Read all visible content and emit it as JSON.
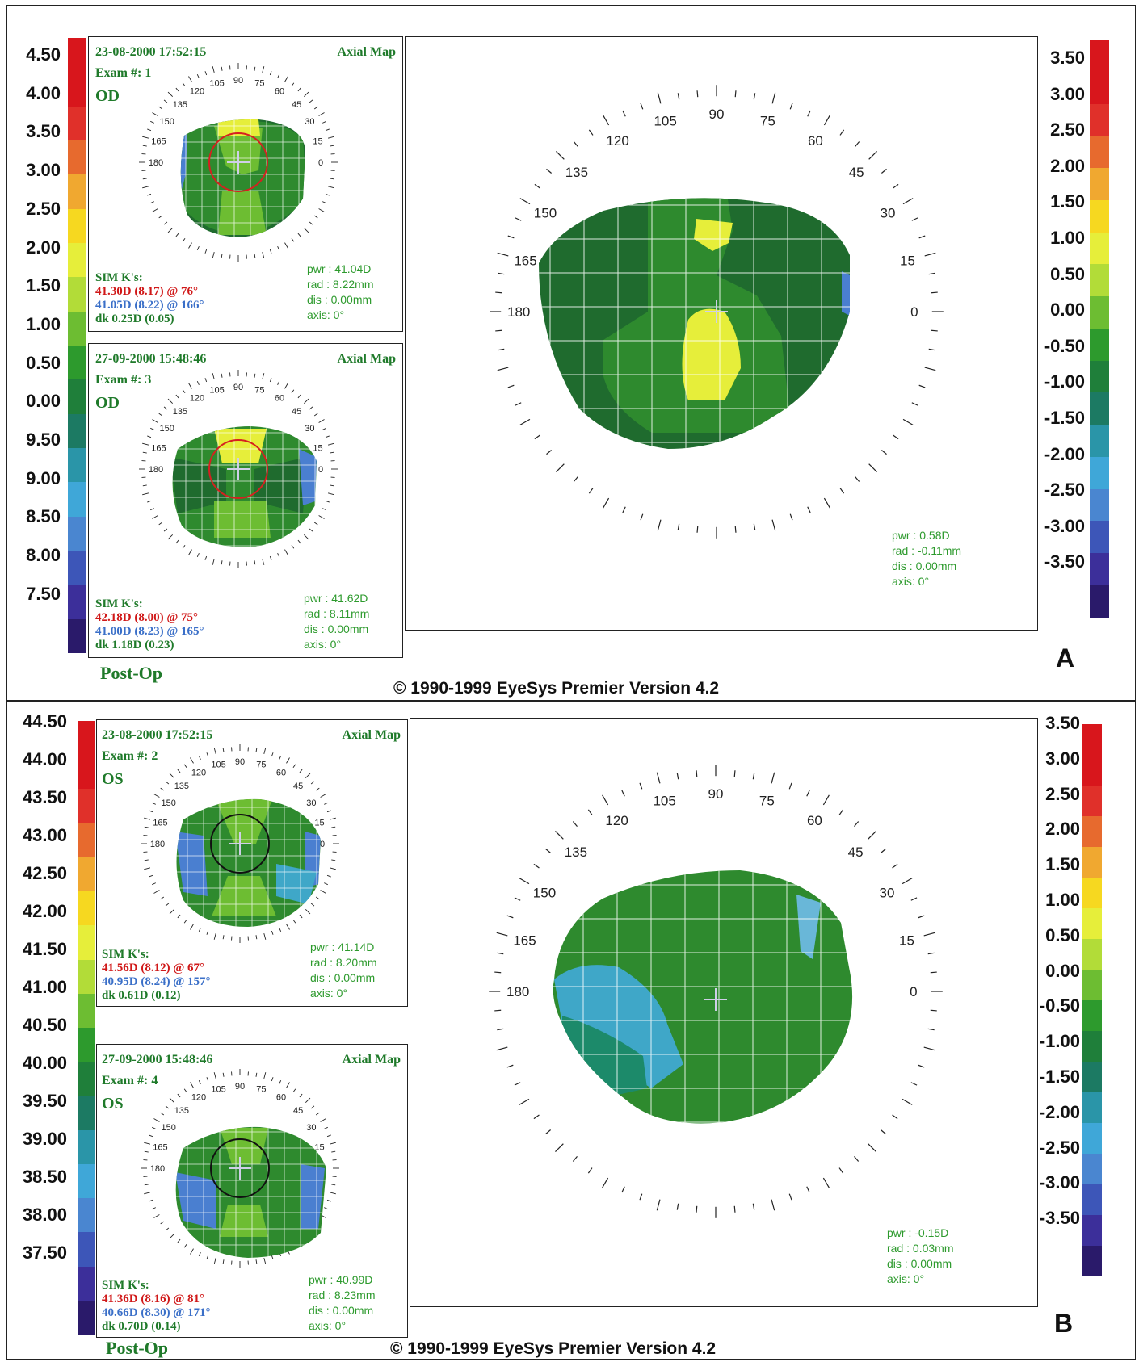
{
  "copyright": "© 1990-1999 EyeSys Premier Version 4.2",
  "post_op_label": "Post-Op",
  "panel_letters": [
    "A",
    "B"
  ],
  "map_type": "Axial Map",
  "sim_k_heading": "SIM K's:",
  "angles": [
    "90",
    "105",
    "120",
    "135",
    "150",
    "165",
    "180",
    "0",
    "15",
    "30",
    "45",
    "60",
    "75"
  ],
  "colors": {
    "scale": [
      "#d8161c",
      "#d8161c",
      "#e0302a",
      "#e76a2e",
      "#f0a830",
      "#f6d820",
      "#e6ee3a",
      "#b2dc38",
      "#6dbd32",
      "#2d9a2d",
      "#1f7f3a",
      "#1c7a63",
      "#2a95a8",
      "#3fa7d8",
      "#4a86d0",
      "#3d56b8",
      "#3c2f9a",
      "#2a1a6a"
    ],
    "grid": "#ffffff",
    "ring_red": "#d62020",
    "ring_black": "#111111"
  },
  "panel_a": {
    "left_scale": [
      "4.50",
      "4.00",
      "3.50",
      "3.00",
      "2.50",
      "2.00",
      "1.50",
      "1.00",
      "0.50",
      "0.00",
      "9.50",
      "9.00",
      "8.50",
      "8.00",
      "7.50"
    ],
    "right_scale": [
      "3.50",
      "3.00",
      "2.50",
      "2.00",
      "1.50",
      "1.00",
      "0.50",
      "0.00",
      "-0.50",
      "-1.00",
      "-1.50",
      "-2.00",
      "-2.50",
      "-3.00",
      "-3.50"
    ],
    "exam1": {
      "datetime": "23-08-2000 17:52:15",
      "exam": "Exam #: 1",
      "eye": "OD",
      "k1": "41.30D (8.17) @ 76°",
      "k2": "41.05D (8.22) @ 166°",
      "dk": "dk 0.25D (0.05)",
      "pwr": "pwr : 41.04D",
      "rad": "rad : 8.22mm",
      "dis": "dis : 0.00mm",
      "axis": "axis: 0°"
    },
    "exam3": {
      "datetime": "27-09-2000 15:48:46",
      "exam": "Exam #: 3",
      "eye": "OD",
      "k1": "42.18D (8.00) @ 75°",
      "k2": "41.00D (8.23) @ 165°",
      "dk": "dk 1.18D (0.23)",
      "pwr": "pwr : 41.62D",
      "rad": "rad : 8.11mm",
      "dis": "dis : 0.00mm",
      "axis": "axis: 0°"
    },
    "diff": {
      "pwr": "pwr : 0.58D",
      "rad": "rad : -0.11mm",
      "dis": "dis : 0.00mm",
      "axis": "axis: 0°"
    }
  },
  "panel_b": {
    "left_scale": [
      "44.50",
      "44.00",
      "43.50",
      "43.00",
      "42.50",
      "42.00",
      "41.50",
      "41.00",
      "40.50",
      "40.00",
      "39.50",
      "39.00",
      "38.50",
      "38.00",
      "37.50"
    ],
    "right_scale": [
      "3.50",
      "3.00",
      "2.50",
      "2.00",
      "1.50",
      "1.00",
      "0.50",
      "0.00",
      "-0.50",
      "-1.00",
      "-1.50",
      "-2.00",
      "-2.50",
      "-3.00",
      "-3.50"
    ],
    "exam2": {
      "datetime": "23-08-2000 17:52:15",
      "exam": "Exam #: 2",
      "eye": "OS",
      "k1": "41.56D (8.12) @ 67°",
      "k2": "40.95D (8.24) @ 157°",
      "dk": "dk 0.61D (0.12)",
      "pwr": "pwr : 41.14D",
      "rad": "rad : 8.20mm",
      "dis": "dis : 0.00mm",
      "axis": "axis: 0°"
    },
    "exam4": {
      "datetime": "27-09-2000 15:48:46",
      "exam": "Exam #: 4",
      "eye": "OS",
      "k1": "41.36D (8.16) @ 81°",
      "k2": "40.66D (8.30) @ 171°",
      "dk": "dk 0.70D (0.14)",
      "pwr": "pwr : 40.99D",
      "rad": "rad : 8.23mm",
      "dis": "dis : 0.00mm",
      "axis": "axis: 0°"
    },
    "diff": {
      "pwr": "pwr : -0.15D",
      "rad": "rad : 0.03mm",
      "dis": "dis : 0.00mm",
      "axis": "axis: 0°"
    }
  }
}
